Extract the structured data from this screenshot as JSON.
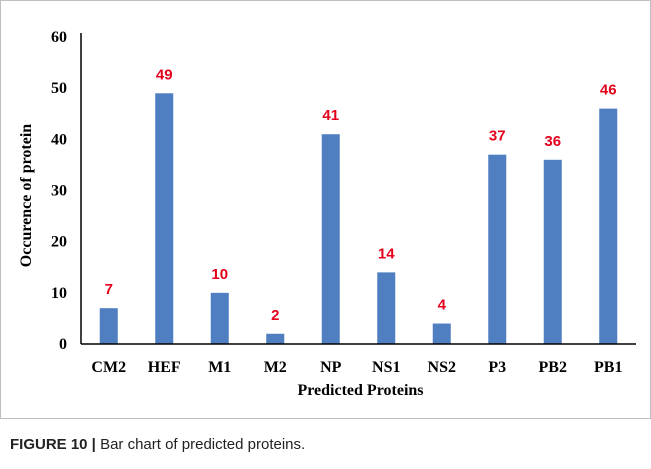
{
  "caption": {
    "label": "FIGURE 10 |",
    "text": "Bar chart of predicted proteins."
  },
  "chart_data": {
    "type": "bar",
    "title": "",
    "xlabel": "Predicted Proteins",
    "ylabel": "Occurence of protein",
    "ylim": [
      0,
      60
    ],
    "yticks": [
      0,
      10,
      20,
      30,
      40,
      50,
      60
    ],
    "grid": false,
    "legend": "none",
    "bar_color": "#4f7fc0",
    "label_color": "#e4001b",
    "categories": [
      "CM2",
      "HEF",
      "M1",
      "M2",
      "NP",
      "NS1",
      "NS2",
      "P3",
      "PB2",
      "PB1"
    ],
    "values": [
      7,
      49,
      10,
      2,
      41,
      14,
      4,
      37,
      36,
      46
    ]
  }
}
